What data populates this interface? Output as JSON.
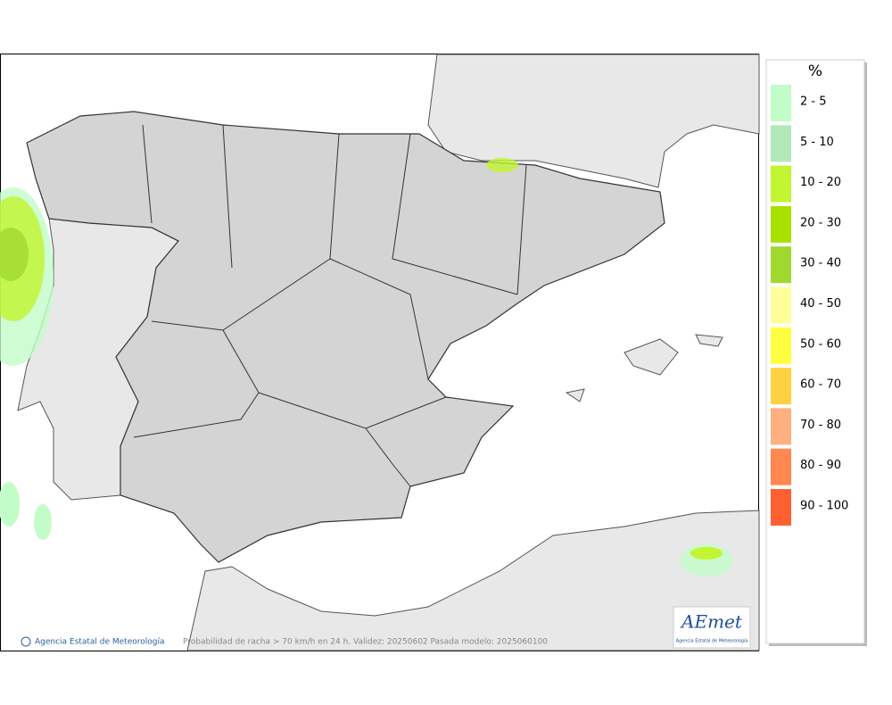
{
  "legend": {
    "title": "%",
    "items": [
      {
        "label": "2 - 5",
        "color": "#c2fcc8"
      },
      {
        "label": "5 - 10",
        "color": "#b2e8b8"
      },
      {
        "label": "10 - 20",
        "color": "#c0f530"
      },
      {
        "label": "20 - 30",
        "color": "#a8e000"
      },
      {
        "label": "30 - 40",
        "color": "#a0d830"
      },
      {
        "label": "40 - 50",
        "color": "#ffff99"
      },
      {
        "label": "50 - 60",
        "color": "#ffff40"
      },
      {
        "label": "60 - 70",
        "color": "#ffd040"
      },
      {
        "label": "70 - 80",
        "color": "#ffb080"
      },
      {
        "label": "80 - 90",
        "color": "#ff8850"
      },
      {
        "label": "90 - 100",
        "color": "#ff6030"
      }
    ]
  },
  "footer": {
    "credit": "Agencia Estatal de Meteorología",
    "caption": "Probabilidad de racha > 70 km/h en 24 h. Validez: 20250602 Pasada modelo: 2025060100"
  },
  "logo": {
    "name": "AEmet",
    "subtitle": "Agencia Estatal de Meteorología"
  }
}
